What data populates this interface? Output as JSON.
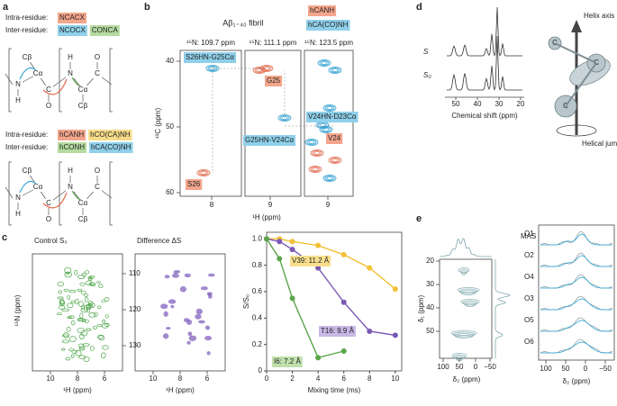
{
  "figure": {
    "a": {
      "label": "a",
      "set1": {
        "intra_label": "Intra-residue:",
        "intra": [
          "NCACX"
        ],
        "inter_label": "Inter-residue:",
        "inter": [
          "NCOCX",
          "CONCA"
        ]
      },
      "set2": {
        "intra_label": "Intra-residue:",
        "intra": [
          "hCANH",
          "hCO(CA)NH"
        ],
        "inter_label": "Inter-residue:",
        "inter": [
          "hCONH",
          "hCA(CO)NH"
        ]
      },
      "molecule1": [
        "Cβ",
        "N",
        "H",
        "Cα",
        "C",
        "O",
        "N",
        "H",
        "Cα",
        "Cβ",
        "C",
        "O"
      ],
      "molecule2": [
        "Cβ",
        "N",
        "H",
        "Cα",
        "C",
        "O",
        "N",
        "H",
        "Cα",
        "Cβ",
        "C",
        "O"
      ]
    },
    "b": {
      "label": "b",
      "title": "Aβ₁₋₄₀ fibril",
      "legend": [
        "hCANH",
        "hCA(CO)NH"
      ],
      "shifts": [
        "¹⁵N: 109.7 ppm",
        "¹⁵N: 111.1 ppm",
        "¹⁵N: 123.5 ppm"
      ],
      "peaks": [
        "S26HN-G25Cα",
        "G25",
        "G25HN-V24Cα",
        "S26",
        "V24HN-D23Cα",
        "V24"
      ],
      "y_label": "¹³C (ppm)",
      "y_ticks": [
        "40",
        "50",
        "60"
      ],
      "x_ticks": [
        "8",
        "9",
        "9"
      ],
      "x_label": "¹H (ppm)"
    },
    "c": {
      "label": "c",
      "spectra": [
        "Control S₀",
        "Difference ΔS"
      ],
      "y_label": "¹⁵N (ppm)",
      "y_ticks": [
        "110",
        "120",
        "130"
      ],
      "x_ticks_1": [
        "10",
        "8",
        "6"
      ],
      "x_ticks_2": [
        "10",
        "8",
        "6"
      ],
      "x_label_1": "¹H (ppm)",
      "x_label_2": "¹H (ppm)"
    },
    "d": {
      "label": "d",
      "traces": [
        "S",
        "S₀"
      ],
      "x_ticks": [
        "50",
        "40",
        "30",
        "20"
      ],
      "x_label": "Chemical shift (ppm)",
      "helix_axis": "Helix axis",
      "carbons": [
        "C",
        "C",
        "C"
      ],
      "jumps": "Helical jumps"
    },
    "e": {
      "label": "e",
      "mas": "MAS",
      "y_label": "δ₁ (ppm)",
      "y_ticks": [
        "20",
        "30",
        "40",
        "50"
      ],
      "x_ticks": [
        "100",
        "50",
        "0",
        "−50"
      ],
      "x_label": "δ₂ (ppm)",
      "rows": [
        "O1",
        "O2",
        "O4",
        "O3",
        "O5",
        "O6"
      ],
      "stack_x_ticks": [
        "100",
        "50",
        "0",
        "−50"
      ],
      "stack_x_label": "δ₂ (ppm)"
    }
  },
  "chart_data": {
    "type": "line",
    "x_label": "Mixing time (ms)",
    "y_label": "S/S₀",
    "x": [
      0,
      1,
      2,
      4,
      6,
      8,
      10
    ],
    "series": [
      {
        "name": "V39: 11.2 Å",
        "color": "#f2c037",
        "values": [
          1.0,
          1.0,
          0.98,
          0.95,
          0.88,
          0.78,
          0.62
        ]
      },
      {
        "name": "T16: 9.9 Å",
        "color": "#7a58b3",
        "values": [
          1.0,
          0.98,
          0.92,
          0.78,
          0.52,
          0.3,
          0.27
        ]
      },
      {
        "name": "I6: 7.2 Å",
        "color": "#5aa64a",
        "values": [
          1.0,
          0.85,
          0.55,
          0.1,
          0.15,
          null,
          null
        ]
      }
    ],
    "xlim": [
      0,
      10.5
    ],
    "ylim": [
      0,
      1.05
    ],
    "xticks": [
      0,
      2,
      4,
      6,
      8,
      10
    ],
    "yticks": [
      0,
      0.2,
      0.4,
      0.6,
      0.8,
      {
        "value": 1,
        "label": "1.0"
      }
    ]
  }
}
